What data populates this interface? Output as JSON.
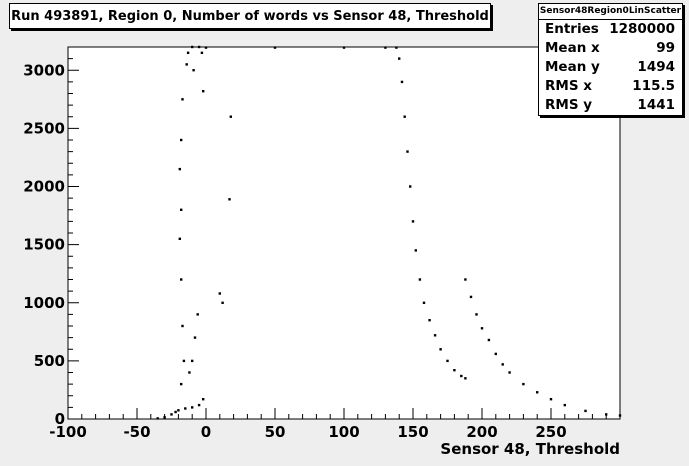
{
  "title": "Run 493891, Region 0, Number of words vs Sensor 48, Threshold",
  "stats": {
    "name": "Sensor48Region0LinScatter",
    "rows": [
      {
        "label": "Entries",
        "value": "1280000"
      },
      {
        "label": "Mean x",
        "value": "99"
      },
      {
        "label": "Mean y",
        "value": "1494"
      },
      {
        "label": "RMS x",
        "value": "115.5"
      },
      {
        "label": "RMS y",
        "value": "1441"
      }
    ]
  },
  "chart_data": {
    "type": "scatter",
    "title": "Run 493891, Region 0, Number of words vs Sensor 48, Threshold",
    "xlabel": "Sensor 48, Threshold",
    "ylabel": "",
    "xlim": [
      -100,
      300
    ],
    "ylim": [
      0,
      3200
    ],
    "x_ticks": [
      -100,
      -50,
      0,
      50,
      100,
      150,
      200,
      250
    ],
    "y_ticks": [
      0,
      500,
      1000,
      1500,
      2000,
      2500,
      3000
    ],
    "x_tick_labels": [
      "-100",
      "-50",
      "0",
      "50",
      "100",
      "150",
      "200",
      "250"
    ],
    "y_tick_labels": [
      "0",
      "500",
      "1000",
      "1500",
      "2000",
      "2500",
      "3000"
    ],
    "grid": false,
    "point_color": "#000000",
    "series": [
      {
        "values": [
          [
            -35,
            5
          ],
          [
            -30,
            15
          ],
          [
            -25,
            40
          ],
          [
            -22,
            60
          ],
          [
            -20,
            75
          ],
          [
            -15,
            90
          ],
          [
            -10,
            100
          ],
          [
            -5,
            120
          ],
          [
            -2,
            170
          ],
          [
            -18,
            300
          ],
          [
            -16,
            500
          ],
          [
            -17,
            800
          ],
          [
            -18,
            1200
          ],
          [
            -19,
            1550
          ],
          [
            -18,
            1800
          ],
          [
            -19,
            2150
          ],
          [
            -18,
            2400
          ],
          [
            -17,
            2750
          ],
          [
            -14,
            3050
          ],
          [
            -13,
            3150
          ],
          [
            -10,
            3200
          ],
          [
            -5,
            3200
          ],
          [
            -3,
            3150
          ],
          [
            -12,
            400
          ],
          [
            -10,
            500
          ],
          [
            -8,
            700
          ],
          [
            -6,
            900
          ],
          [
            -9,
            3000
          ],
          [
            -2,
            2820
          ],
          [
            10,
            1080
          ],
          [
            12,
            1000
          ],
          [
            18,
            2600
          ],
          [
            17,
            1890
          ],
          [
            0,
            3195
          ],
          [
            50,
            3195
          ],
          [
            100,
            3195
          ],
          [
            130,
            3195
          ],
          [
            138,
            3195
          ],
          [
            140,
            3100
          ],
          [
            142,
            2900
          ],
          [
            144,
            2600
          ],
          [
            146,
            2300
          ],
          [
            148,
            2000
          ],
          [
            150,
            1700
          ],
          [
            152,
            1450
          ],
          [
            155,
            1200
          ],
          [
            158,
            1000
          ],
          [
            162,
            850
          ],
          [
            166,
            720
          ],
          [
            170,
            600
          ],
          [
            175,
            500
          ],
          [
            180,
            420
          ],
          [
            185,
            370
          ],
          [
            188,
            350
          ],
          [
            188,
            1200
          ],
          [
            192,
            1050
          ],
          [
            196,
            900
          ],
          [
            200,
            780
          ],
          [
            205,
            680
          ],
          [
            210,
            560
          ],
          [
            215,
            470
          ],
          [
            220,
            400
          ],
          [
            230,
            300
          ],
          [
            240,
            230
          ],
          [
            250,
            170
          ],
          [
            260,
            120
          ],
          [
            275,
            70
          ],
          [
            290,
            40
          ],
          [
            300,
            30
          ]
        ]
      }
    ]
  }
}
